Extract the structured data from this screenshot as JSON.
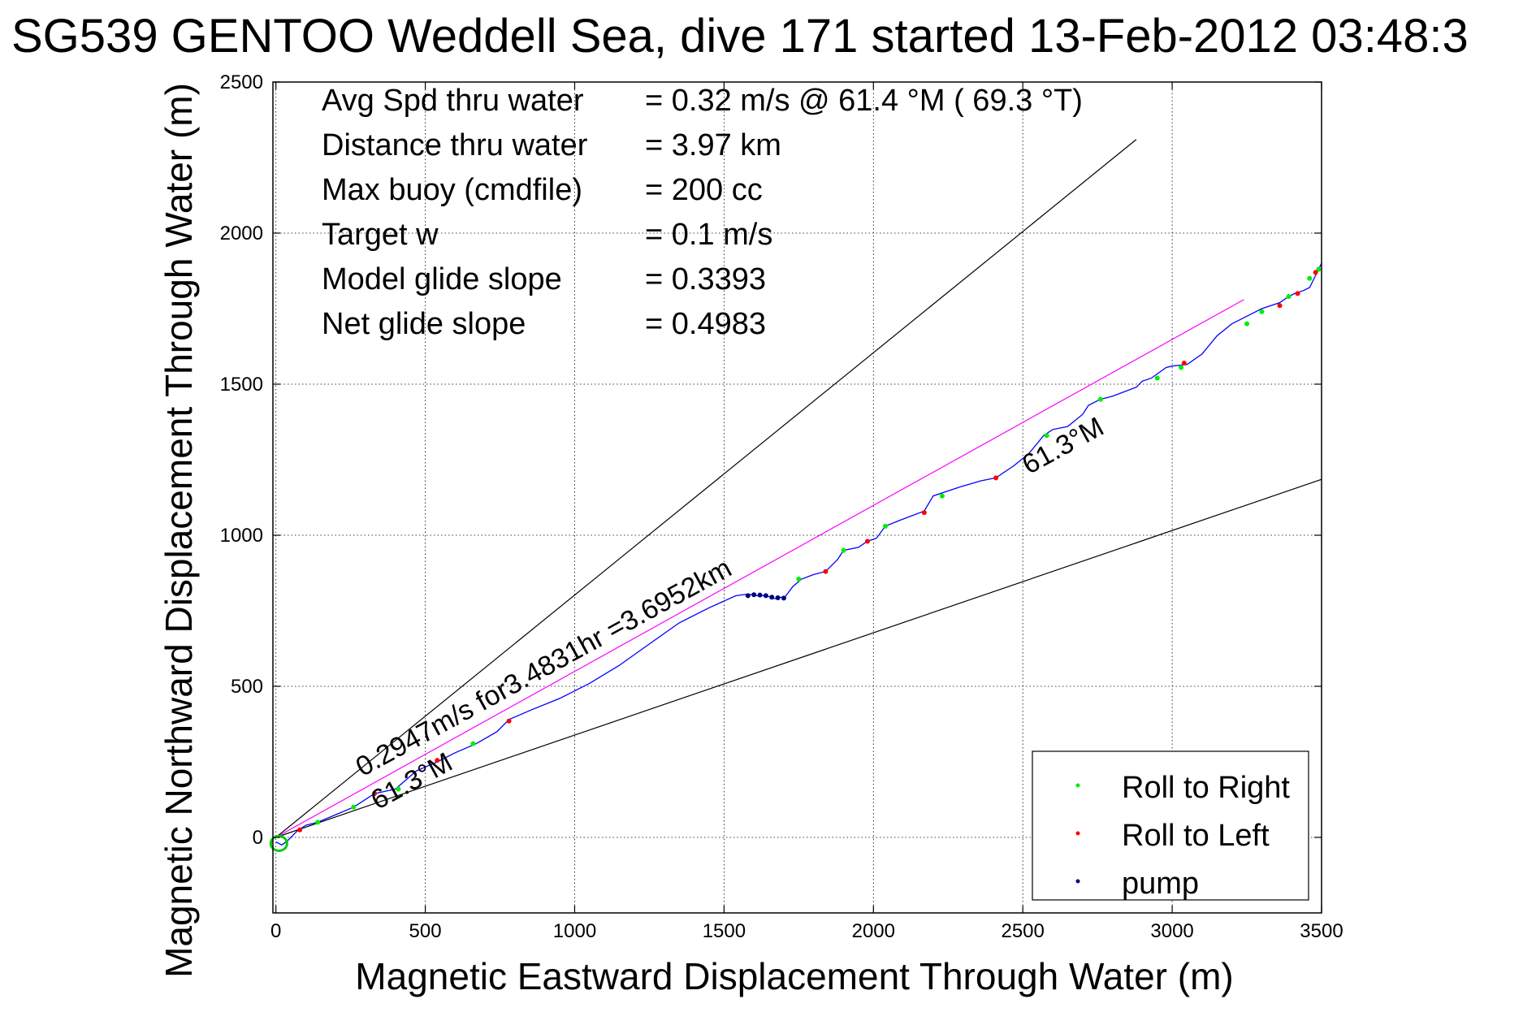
{
  "title": "SG539 GENTOO Weddell Sea, dive 171 started 13-Feb-2012 03:48:3",
  "chart_data": {
    "type": "line",
    "title": "SG539 GENTOO Weddell Sea, dive 171 started 13-Feb-2012 03:48:3",
    "xlabel": "Magnetic Eastward Displacement Through Water (m)",
    "ylabel": "Magnetic Northward Displacement Through Water (m)",
    "xlim": [
      -10,
      3500
    ],
    "ylim": [
      -250,
      2500
    ],
    "xticks": [
      0,
      500,
      1000,
      1500,
      2000,
      2500,
      3000,
      3500
    ],
    "yticks": [
      0,
      500,
      1000,
      1500,
      2000,
      2500
    ],
    "grid": true,
    "legend_position": "bottom-right",
    "info_lines": [
      {
        "label": "Avg Spd thru water",
        "value": "=  0.32 m/s @  61.4 °M ( 69.3 °T)"
      },
      {
        "label": "Distance thru water",
        "value": "=  3.97 km"
      },
      {
        "label": "Max buoy (cmdfile)",
        "value": "= 200 cc"
      },
      {
        "label": "Target w",
        "value": "= 0.1 m/s"
      },
      {
        "label": "Model glide slope",
        "value": "= 0.3393"
      },
      {
        "label": "Net glide slope",
        "value": "= 0.4983"
      }
    ],
    "annotations": [
      {
        "text": "0.2947m/s for3.4831hr =3.6952km",
        "x": 290,
        "y": 200,
        "angle_deg": 28.7
      },
      {
        "text": "61.3°M",
        "x": 340,
        "y": 90,
        "angle_deg": 28.7
      },
      {
        "text": "61.3°M",
        "x": 2520,
        "y": 1200,
        "angle_deg": 28.7
      }
    ],
    "reference_lines": [
      {
        "name": "upper bound",
        "color": "#000000",
        "x": [
          0,
          2880
        ],
        "y": [
          0,
          2310
        ]
      },
      {
        "name": "lower bound",
        "color": "#000000",
        "x": [
          0,
          3500
        ],
        "y": [
          0,
          1185
        ]
      },
      {
        "name": "net heading",
        "color": "#ff00ff",
        "x": [
          0,
          3240
        ],
        "y": [
          0,
          1780
        ]
      }
    ],
    "series": [
      {
        "name": "track",
        "color": "#0000ff",
        "x": [
          0,
          20,
          40,
          70,
          100,
          140,
          200,
          260,
          330,
          400,
          470,
          540,
          600,
          670,
          740,
          780,
          850,
          950,
          1050,
          1150,
          1250,
          1350,
          1450,
          1540,
          1580,
          1610,
          1640,
          1670,
          1690,
          1700,
          1730,
          1760,
          1800,
          1840,
          1880,
          1900,
          1950,
          1980,
          2010,
          2040,
          2090,
          2170,
          2200,
          2230,
          2290,
          2360,
          2410,
          2470,
          2520,
          2570,
          2600,
          2650,
          2700,
          2720,
          2760,
          2800,
          2880,
          2900,
          2930,
          2980,
          3000,
          3050,
          3100,
          3150,
          3200,
          3240,
          3300,
          3360,
          3390,
          3410,
          3440,
          3460,
          3470,
          3480,
          3500
        ],
        "y": [
          -15,
          -25,
          -10,
          20,
          40,
          50,
          75,
          100,
          145,
          160,
          220,
          250,
          280,
          310,
          350,
          390,
          420,
          460,
          510,
          570,
          640,
          710,
          760,
          800,
          805,
          800,
          800,
          790,
          795,
          790,
          830,
          855,
          870,
          880,
          920,
          950,
          960,
          980,
          990,
          1030,
          1050,
          1080,
          1130,
          1140,
          1160,
          1180,
          1190,
          1230,
          1270,
          1330,
          1350,
          1360,
          1400,
          1430,
          1450,
          1460,
          1490,
          1510,
          1520,
          1555,
          1560,
          1565,
          1600,
          1660,
          1700,
          1720,
          1750,
          1770,
          1790,
          1800,
          1810,
          1820,
          1840,
          1860,
          1900
        ]
      },
      {
        "name": "Roll to Right",
        "color": "#00ee00",
        "x": [
          140,
          260,
          410,
          660,
          1750,
          1900,
          2040,
          2230,
          2580,
          2760,
          2950,
          3030,
          3250,
          3300,
          3390,
          3460,
          3490
        ],
        "y": [
          50,
          100,
          160,
          310,
          855,
          950,
          1030,
          1130,
          1330,
          1450,
          1520,
          1555,
          1700,
          1740,
          1790,
          1850,
          1880
        ]
      },
      {
        "name": "Roll to Left",
        "color": "#ff0000",
        "x": [
          80,
          330,
          540,
          780,
          1840,
          1980,
          2170,
          2410,
          3040,
          3360,
          3420,
          3480
        ],
        "y": [
          25,
          145,
          255,
          385,
          880,
          980,
          1075,
          1190,
          1570,
          1760,
          1800,
          1870
        ]
      },
      {
        "name": "pump",
        "color": "#000080",
        "x": [
          1580,
          1600,
          1620,
          1640,
          1660,
          1680,
          1700
        ],
        "y": [
          800,
          803,
          802,
          800,
          795,
          793,
          792
        ]
      }
    ],
    "legend": [
      "Roll to Right",
      "Roll to Left",
      "pump"
    ]
  }
}
